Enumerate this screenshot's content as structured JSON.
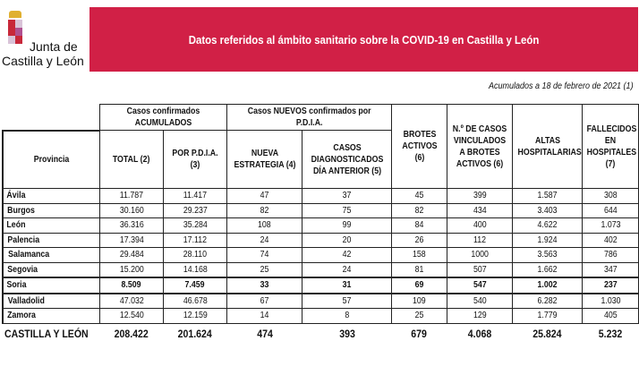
{
  "logo": {
    "line1": "Junta de",
    "line2": "Castilla y León"
  },
  "banner": {
    "title": "Datos referidos al ámbito sanitario sobre la COVID-19 en Castilla y León",
    "color": "#d12046"
  },
  "date_note": "Acumulados a 18 de febrero de 2021 (1)",
  "table": {
    "group_headers": {
      "acumulados": "Casos confirmados ACUMULADOS",
      "nuevos": "Casos NUEVOS confirmados por P.D.I.A."
    },
    "columns": [
      "Provincia",
      "TOTAL (2)",
      "POR P.D.I.A. (3)",
      "NUEVA ESTRATEGIA (4)",
      "CASOS DIAGNOSTICADOS DÍA ANTERIOR (5)",
      "BROTES ACTIVOS (6)",
      "N.º DE CASOS VINCULADOS A BROTES ACTIVOS (6)",
      "ALTAS HOSPITALARIAS",
      "FALLECIDOS EN HOSPITALES (7)"
    ],
    "rows": [
      [
        "Ávila",
        "11.787",
        "11.417",
        "47",
        "37",
        "45",
        "399",
        "1.587",
        "308"
      ],
      [
        "Burgos",
        "30.160",
        "29.237",
        "82",
        "75",
        "82",
        "434",
        "3.403",
        "644"
      ],
      [
        "León",
        "36.316",
        "35.284",
        "108",
        "99",
        "84",
        "400",
        "4.622",
        "1.073"
      ],
      [
        "Palencia",
        "17.394",
        "17.112",
        "24",
        "20",
        "26",
        "112",
        "1.924",
        "402"
      ],
      [
        "Salamanca",
        "29.484",
        "28.110",
        "74",
        "42",
        "158",
        "1000",
        "3.563",
        "786"
      ],
      [
        "Segovia",
        "15.200",
        "14.168",
        "25",
        "24",
        "81",
        "507",
        "1.662",
        "347"
      ],
      [
        "Soria",
        "8.509",
        "7.459",
        "33",
        "31",
        "69",
        "547",
        "1.002",
        "237"
      ],
      [
        "Valladolid",
        "47.032",
        "46.678",
        "67",
        "57",
        "109",
        "540",
        "6.282",
        "1.030"
      ],
      [
        "Zamora",
        "12.540",
        "12.159",
        "14",
        "8",
        "25",
        "129",
        "1.779",
        "405"
      ]
    ],
    "highlighted_row": "Soria",
    "total": [
      "CASTILLA Y LEÓN",
      "208.422",
      "201.624",
      "474",
      "393",
      "679",
      "4.068",
      "25.824",
      "5.232"
    ]
  }
}
